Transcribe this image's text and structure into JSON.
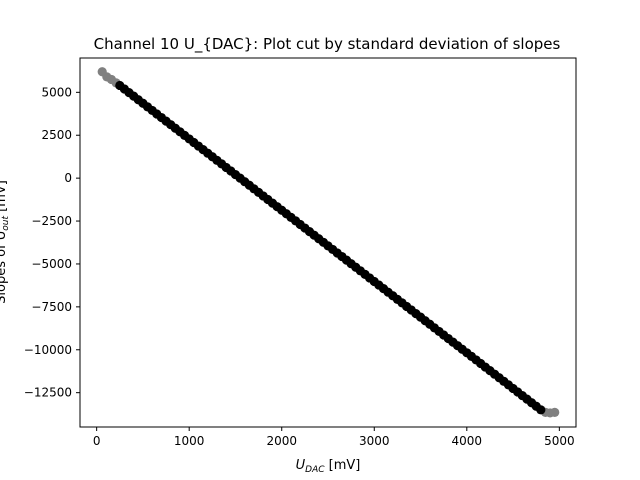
{
  "chart_data": {
    "type": "scatter",
    "title": "Channel 10 U_{DAC}: Plot cut by standard deviation of slopes",
    "xlabel": {
      "main": "U",
      "sub": "DAC",
      "unit": " [mV]"
    },
    "ylabel": {
      "pre": "Slopes of U",
      "sub": "out",
      "unit": " [mV]"
    },
    "xlim": [
      -180,
      5180
    ],
    "ylim": [
      -14500,
      7000
    ],
    "xticks": [
      0,
      1000,
      2000,
      3000,
      4000,
      5000
    ],
    "xtick_labels": [
      "0",
      "1000",
      "2000",
      "3000",
      "4000",
      "5000"
    ],
    "yticks": [
      5000,
      2500,
      0,
      -2500,
      -5000,
      -7500,
      -10000,
      -12500
    ],
    "ytick_labels": [
      "5000",
      "2500",
      "0",
      "−2500",
      "−5000",
      "−7500",
      "−10000",
      "−12500"
    ],
    "grid": false,
    "line": {
      "x_start": 250,
      "x_end": 4800,
      "y_start": 5400,
      "y_end": -13500,
      "step": 50
    },
    "series": [
      {
        "color": "#808080",
        "x": [
          60,
          110,
          160,
          210
        ],
        "y": [
          6200,
          5900,
          5750,
          5550
        ]
      },
      {
        "color": "#000000",
        "x": [],
        "y": []
      },
      {
        "color": "#808080",
        "x": [
          4850,
          4900,
          4950
        ],
        "y": [
          -13650,
          -13680,
          -13650
        ]
      }
    ]
  },
  "colors": {
    "cut": "#808080",
    "kept": "#000000",
    "axis": "#000000"
  }
}
